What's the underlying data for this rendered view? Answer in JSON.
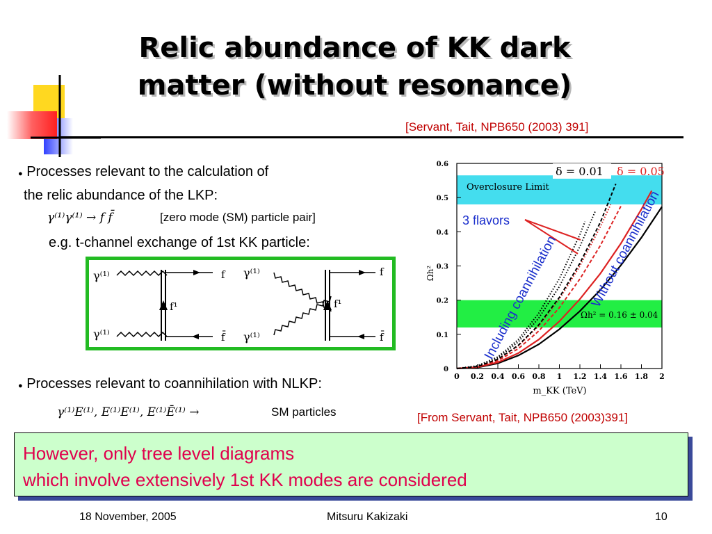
{
  "slide": {
    "title_line1": "Relic abundance of KK dark",
    "title_line2": "matter (without resonance)",
    "reference_top": "[Servant, Tait, NPB650 (2003) 391]",
    "bullet1_line1": "Processes relevant to the calculation of",
    "bullet1_line2": "the relic abundance of the LKP:",
    "process_formula": "γ⁽¹⁾γ⁽¹⁾ → f f̄",
    "process_note": "[zero mode (SM) particle pair]",
    "example_text": "e.g. t-channel exchange of 1st KK particle:",
    "bullet2_text": "Processes relevant to coannihilation with NLKP:",
    "coann_formula": "γ⁽¹⁾E⁽¹⁾,  E⁽¹⁾E⁽¹⁾,  E⁽¹⁾Ē⁽¹⁾ →",
    "coann_suffix": "SM particles",
    "reference_bottom": "[From Servant, Tait, NPB650 (2003)391]",
    "note_line1": "However, only tree level diagrams",
    "note_line2": "which involve extensively 1st KK modes are considered",
    "footer_date": "18 November, 2005",
    "footer_author": "Mitsuru Kakizaki",
    "footer_page": "10"
  },
  "feynman": {
    "left": {
      "photon_top": "γ⁽¹⁾",
      "photon_bottom": "γ⁽¹⁾",
      "f_top": "f",
      "f_bottom": "f̄",
      "propagator": "f¹"
    },
    "right": {
      "photon_top": "γ⁽¹⁾",
      "photon_bottom": "γ⁽¹⁾",
      "f_top": "f",
      "f_bottom": "f̄",
      "propagator": "f¹"
    }
  },
  "chart_data": {
    "type": "line",
    "xlabel": "m_KK (TeV)",
    "ylabel": "Ωh²",
    "xlim": [
      0,
      2
    ],
    "ylim": [
      0,
      0.6
    ],
    "x_ticks": [
      "0",
      "0.2",
      "0.4",
      "0.6",
      "0.8",
      "1",
      "1.2",
      "1.4",
      "1.6",
      "1.8",
      "2"
    ],
    "y_ticks": [
      "0",
      "0.1",
      "0.2",
      "0.3",
      "0.4",
      "0.5",
      "0.6"
    ],
    "bands": [
      {
        "label": "Overclosure Limit",
        "y_range": [
          0.48,
          0.565
        ],
        "color": "#44ddee"
      },
      {
        "label": "Ωh² = 0.16 ± 0.04",
        "y_range": [
          0.12,
          0.2
        ],
        "color": "#22ee44"
      }
    ],
    "legend": [
      {
        "label": "δ = 0.01",
        "color": "#000000"
      },
      {
        "label": "δ = 0.05",
        "color": "#dd2222"
      }
    ],
    "annotations": {
      "flavors": "3 flavors",
      "including": "Including coannihilation",
      "without": "Without coannihilation"
    },
    "series": [
      {
        "color": "#000000",
        "style": "solid",
        "x": [
          0,
          0.2,
          0.4,
          0.6,
          0.8,
          1.0,
          1.2,
          1.4,
          1.6,
          1.8,
          2.0
        ],
        "y": [
          0,
          0.003,
          0.015,
          0.038,
          0.071,
          0.115,
          0.168,
          0.23,
          0.302,
          0.383,
          0.473
        ]
      },
      {
        "color": "#dd2222",
        "style": "solid",
        "x": [
          0,
          0.2,
          0.4,
          0.6,
          0.8,
          1.0,
          1.2,
          1.4,
          1.6,
          1.8,
          1.9
        ],
        "y": [
          0,
          0.004,
          0.018,
          0.045,
          0.085,
          0.138,
          0.203,
          0.278,
          0.366,
          0.466,
          0.52
        ]
      },
      {
        "color": "#dd2222",
        "style": "dashed",
        "x": [
          0,
          0.2,
          0.4,
          0.6,
          0.8,
          1.0,
          1.2,
          1.4,
          1.6
        ],
        "y": [
          0,
          0.005,
          0.023,
          0.058,
          0.11,
          0.178,
          0.262,
          0.36,
          0.475
        ]
      },
      {
        "color": "#dd2222",
        "style": "dotted",
        "x": [
          0,
          0.2,
          0.4,
          0.6,
          0.8,
          1.0,
          1.2,
          1.4,
          1.5
        ],
        "y": [
          0,
          0.006,
          0.026,
          0.066,
          0.125,
          0.203,
          0.3,
          0.415,
          0.48
        ]
      },
      {
        "color": "#000000",
        "style": "dashed",
        "x": [
          0,
          0.2,
          0.4,
          0.6,
          0.8,
          1.0,
          1.2,
          1.4,
          1.55
        ],
        "y": [
          0,
          0.006,
          0.027,
          0.068,
          0.128,
          0.208,
          0.308,
          0.428,
          0.54
        ]
      },
      {
        "color": "#000000",
        "style": "dotted",
        "x": [
          0,
          0.2,
          0.4,
          0.6,
          0.8,
          1.0,
          1.2,
          1.35
        ],
        "y": [
          0,
          0.007,
          0.031,
          0.078,
          0.148,
          0.24,
          0.357,
          0.46
        ]
      },
      {
        "color": "#000000",
        "style": "dotted",
        "x": [
          0,
          0.2,
          0.4,
          0.6,
          0.8,
          1.0,
          1.2,
          1.25
        ],
        "y": [
          0,
          0.008,
          0.034,
          0.085,
          0.162,
          0.263,
          0.392,
          0.43
        ]
      }
    ]
  }
}
